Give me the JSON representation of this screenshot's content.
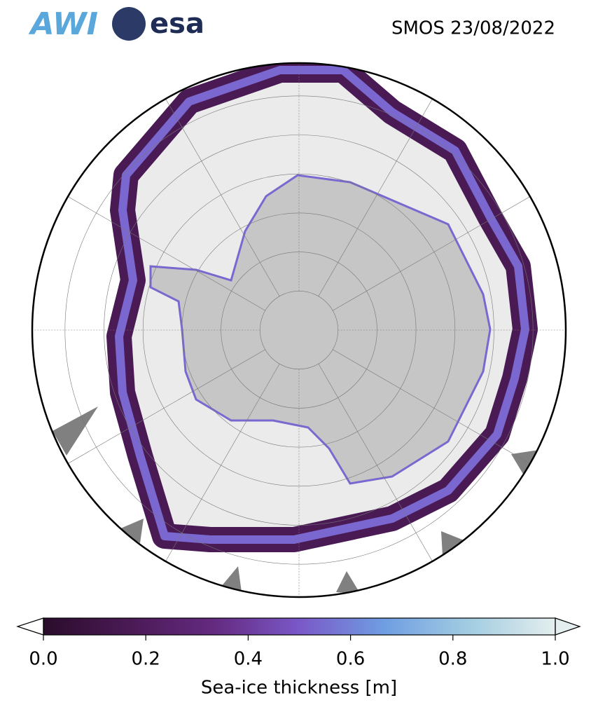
{
  "title": "SMOS 23/08/2022",
  "logos": [
    "AWI",
    "esa"
  ],
  "colorbar": {
    "label": "Sea-ice thickness [m]",
    "lim": [
      0,
      1
    ],
    "ticks": [
      {
        "value": 0,
        "label": "0.0"
      },
      {
        "value": 0.2,
        "label": "0.2"
      },
      {
        "value": 0.4,
        "label": "0.4"
      },
      {
        "value": 0.6,
        "label": "0.6"
      },
      {
        "value": 0.8,
        "label": "0.8"
      },
      {
        "value": 1,
        "label": "1.0"
      }
    ],
    "colors": [
      "#2b0c2b",
      "#4a1a55",
      "#642a80",
      "#7a58c8",
      "#6f9ee2",
      "#a3cde2",
      "#e4eeee"
    ]
  }
}
